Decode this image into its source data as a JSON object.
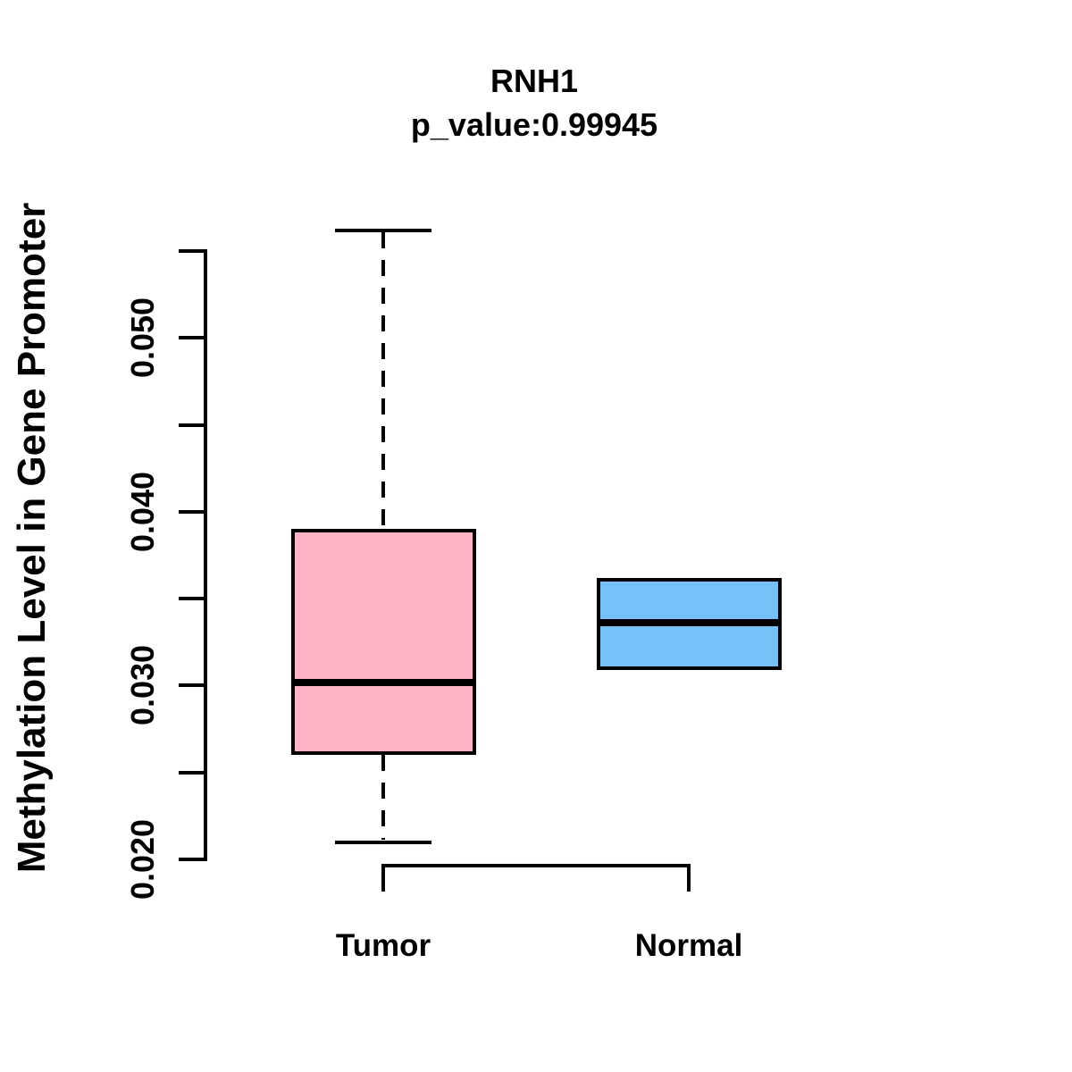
{
  "figure": {
    "title": "RNH1",
    "subtitle": "p_value:0.99945",
    "ylabel": "Methylation Level in Gene Promoter"
  },
  "chart_data": {
    "type": "boxplot",
    "title": "RNH1",
    "subtitle": "p_value:0.99945",
    "gene": "RNH1",
    "p_value": 0.99945,
    "xlabel": "",
    "ylabel": "Methylation Level in Gene Promoter",
    "categories": [
      "Tumor",
      "Normal"
    ],
    "ylim": [
      0.02,
      0.055
    ],
    "grid": false,
    "legend": "none",
    "y_axis": {
      "tick_values": [
        0.02,
        0.025,
        0.03,
        0.035,
        0.04,
        0.045,
        0.05,
        0.055
      ],
      "tick_labels": [
        {
          "value": 0.02,
          "label": "0.020"
        },
        {
          "value": 0.03,
          "label": "0.030"
        },
        {
          "value": 0.04,
          "label": "0.040"
        },
        {
          "value": 0.05,
          "label": "0.050"
        }
      ]
    },
    "series": [
      {
        "name": "Tumor",
        "color": "#FFB3C4",
        "whiskers": true,
        "stats": {
          "whisker_low": 0.021,
          "q1": 0.0261,
          "median": 0.0302,
          "q3": 0.0389,
          "whisker_high": 0.0562
        }
      },
      {
        "name": "Normal",
        "color": "#76C1F8",
        "whiskers": false,
        "stats": {
          "q1": 0.031,
          "median": 0.0336,
          "q3": 0.0361
        }
      }
    ]
  }
}
